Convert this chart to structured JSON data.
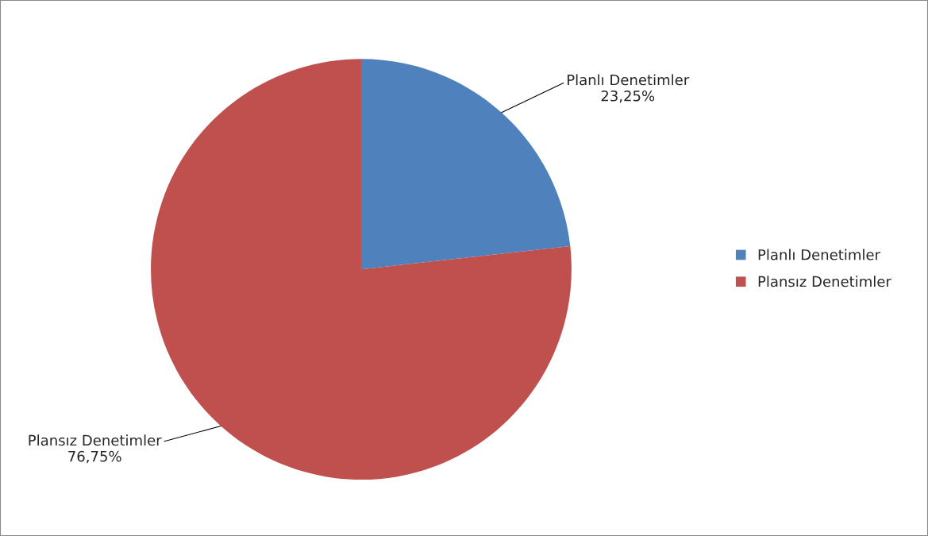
{
  "chart_data": {
    "type": "pie",
    "categories": [
      "Planlı Denetimler",
      "Plansız Denetimler"
    ],
    "values": [
      23.25,
      76.75
    ],
    "colors": [
      "#4f81bd",
      "#c0504d"
    ],
    "value_labels": [
      "23,25%",
      "76,75%"
    ],
    "legend": "right"
  }
}
